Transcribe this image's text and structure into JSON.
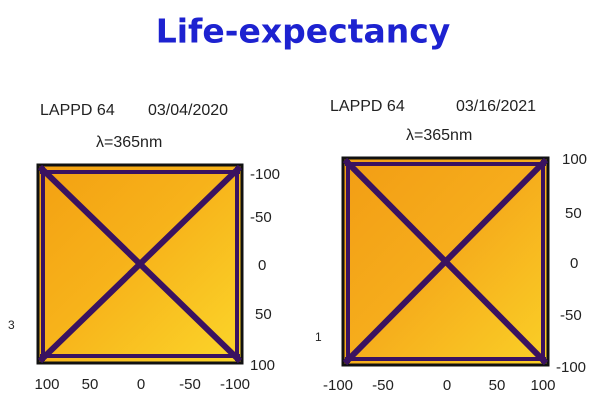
{
  "title": "Life-expectancy",
  "panels": [
    {
      "device": "LAPPD 64",
      "date": "03/04/2020",
      "wavelength": "λ=365nm",
      "side_label": 3,
      "right_ticks": [
        -100,
        -50,
        0,
        50,
        100
      ],
      "bottom_ticks": [
        100,
        50,
        0,
        -50,
        -100
      ]
    },
    {
      "device": "LAPPD 64",
      "date": "03/16/2021",
      "wavelength": "λ=365nm",
      "side_label": 1,
      "right_ticks": [
        100,
        50,
        0,
        -50,
        -100
      ],
      "bottom_ticks": [
        -100,
        -50,
        0,
        50,
        100
      ]
    }
  ]
}
